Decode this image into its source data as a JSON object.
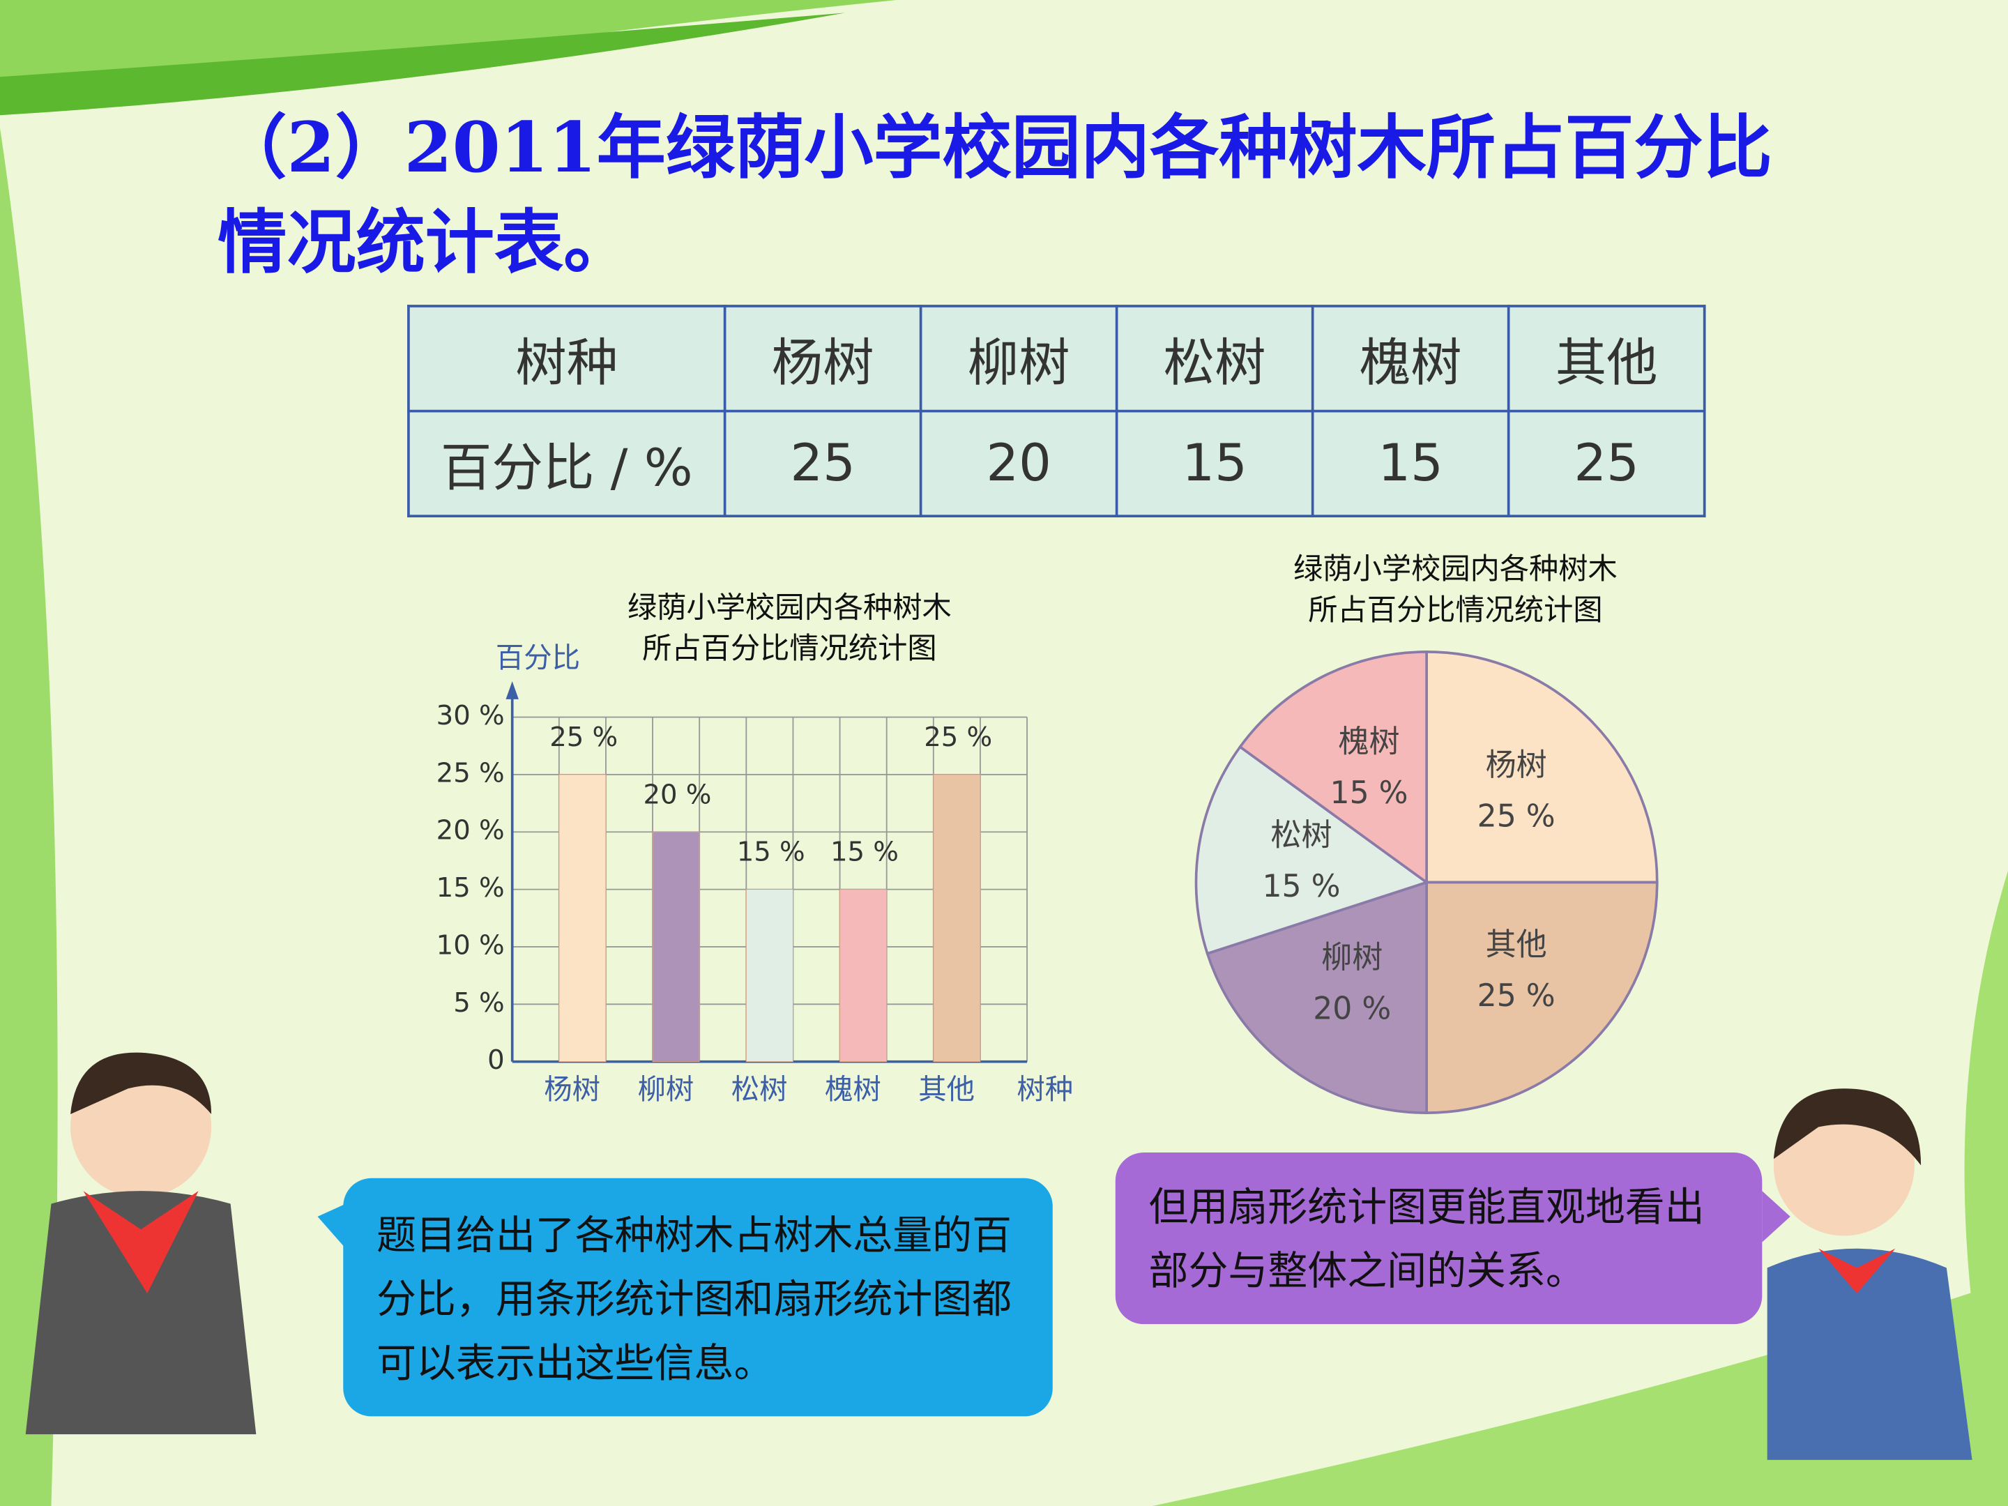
{
  "title": "（2）2011年绿荫小学校园内各种树木所占百分比情况统计表。",
  "table": {
    "rows": [
      [
        "树种",
        "杨树",
        "柳树",
        "松树",
        "槐树",
        "其他"
      ],
      [
        "百分比 / %",
        25,
        20,
        15,
        15,
        25
      ]
    ]
  },
  "chart_data": [
    {
      "type": "bar",
      "title": "绿荫小学校园内各种树木所占百分比情况统计图",
      "y_label": "百分比",
      "x_label": "树种",
      "categories": [
        "杨树",
        "柳树",
        "松树",
        "槐树",
        "其他"
      ],
      "values": [
        25,
        20,
        15,
        15,
        25
      ],
      "value_labels": [
        "25 %",
        "20 %",
        "15 %",
        "15 %",
        "25 %"
      ],
      "colors": [
        "#fde3c6",
        "#ae93b8",
        "#e1eee6",
        "#f4b9b8",
        "#e8c3a4"
      ],
      "ylim": [
        0,
        30
      ],
      "yticks": [
        0,
        {
          "value": 5,
          "label": "5 %"
        },
        {
          "value": 10,
          "label": "10 %"
        },
        {
          "value": 15,
          "label": "15 %"
        },
        {
          "value": 20,
          "label": "20 %"
        },
        {
          "value": 25,
          "label": "25 %"
        },
        {
          "value": 30,
          "label": "30 %"
        }
      ],
      "grid": true
    },
    {
      "type": "pie",
      "title": "绿荫小学校园内各种树木所占百分比情况统计图",
      "categories": [
        "杨树",
        "其他",
        "柳树",
        "松树",
        "槐树"
      ],
      "values": [
        25,
        25,
        20,
        15,
        15
      ],
      "value_labels": [
        "25 %",
        "25 %",
        "20 %",
        "15 %",
        "15 %"
      ],
      "colors": [
        "#fde3c6",
        "#e8c3a4",
        "#ae93b8",
        "#e1eee6",
        "#f4b9b8"
      ]
    }
  ],
  "bubbles": [
    "题目给出了各种树木占树木总量的百分比，用条形统计图和扇形统计图都可以表示出这些信息。",
    "但用扇形统计图更能直观地看出部分与整体之间的关系。"
  ]
}
